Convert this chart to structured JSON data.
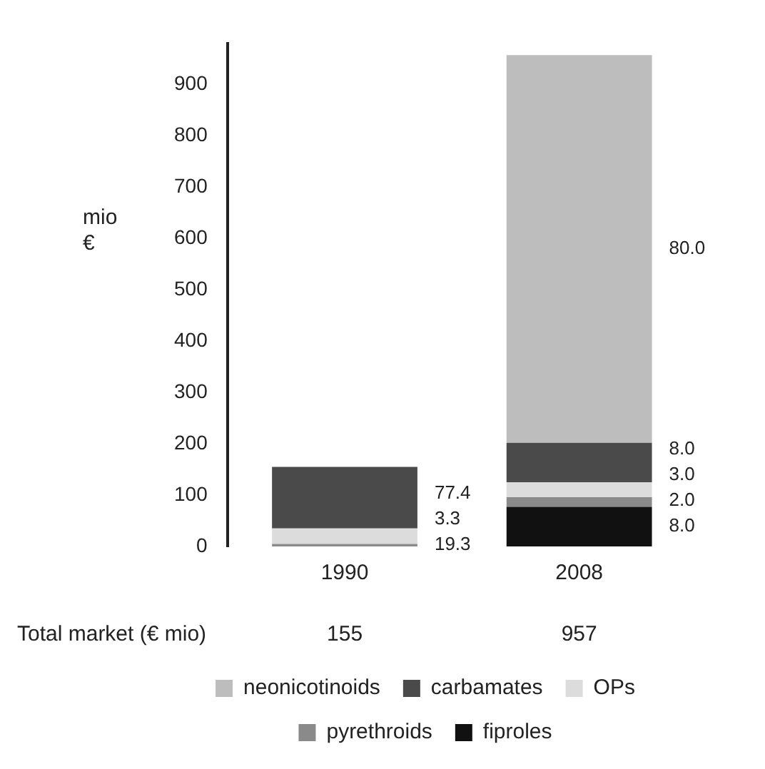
{
  "chart_data": {
    "type": "bar",
    "stacked": true,
    "ylabel": "mio €",
    "categories": [
      "1990",
      "2008"
    ],
    "series": [
      {
        "name": "fiproles",
        "color": "#111111",
        "values": [
          null,
          77
        ]
      },
      {
        "name": "pyrethroids",
        "color": "#8a8a8a",
        "values": [
          5,
          19
        ]
      },
      {
        "name": "OPs",
        "color": "#dcdcdc",
        "values": [
          30,
          29
        ]
      },
      {
        "name": "carbamates",
        "color": "#4a4a4a",
        "values": [
          120,
          77
        ]
      },
      {
        "name": "neonicotinoids",
        "color": "#bdbdbd",
        "values": [
          null,
          755
        ]
      }
    ],
    "ylim": [
      0,
      980
    ],
    "yticks": [
      0,
      100,
      200,
      300,
      400,
      500,
      600,
      700,
      800,
      900
    ],
    "annotations": [
      "Total market (€ mio)",
      "155",
      "957",
      "19.3",
      "3.3",
      "77.4",
      "8.0",
      "2.0",
      "3.0",
      "8.0",
      "80.0"
    ],
    "legend": "bottom",
    "grid": false
  }
}
